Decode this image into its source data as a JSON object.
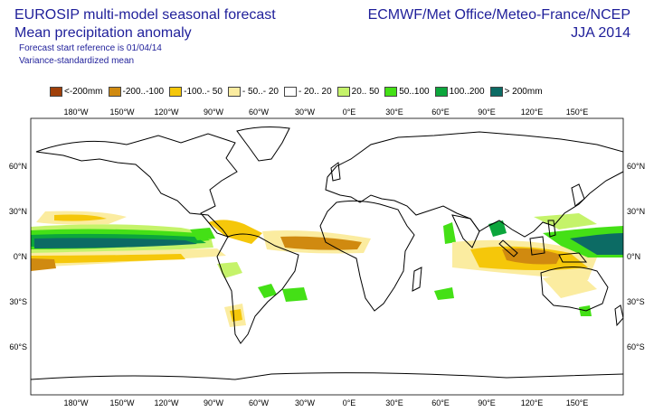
{
  "header": {
    "title_line1": "EUROSIP multi-model seasonal forecast",
    "title_line2": "Mean precipitation anomaly",
    "subtitle_line1": "Forecast start reference is 01/04/14",
    "subtitle_line2": "Variance-standardized mean",
    "source": "ECMWF/Met Office/Meteo-France/NCEP",
    "season": "JJA 2014"
  },
  "legend": [
    {
      "label": "<-200mm",
      "color": "#a0400a"
    },
    {
      "label": "-200..-100",
      "color": "#d08a10"
    },
    {
      "label": "-100..- 50",
      "color": "#f5c70a"
    },
    {
      "label": "- 50..- 20",
      "color": "#fbeca0"
    },
    {
      "label": "- 20.. 20",
      "color": "#ffffff"
    },
    {
      "label": " 20.. 50",
      "color": "#c5f36a"
    },
    {
      "label": " 50..100",
      "color": "#44e016"
    },
    {
      "label": "100..200",
      "color": "#0ca63c"
    },
    {
      "label": "> 200mm",
      "color": "#0c6b64"
    }
  ],
  "axes": {
    "lon_labels": [
      "180°W",
      "150°W",
      "120°W",
      "90°W",
      "60°W",
      "30°W",
      "0°E",
      "30°E",
      "60°E",
      "90°E",
      "120°E",
      "150°E"
    ],
    "lat_labels": [
      "60°N",
      "30°N",
      "0°N",
      "30°S",
      "60°S"
    ]
  }
}
